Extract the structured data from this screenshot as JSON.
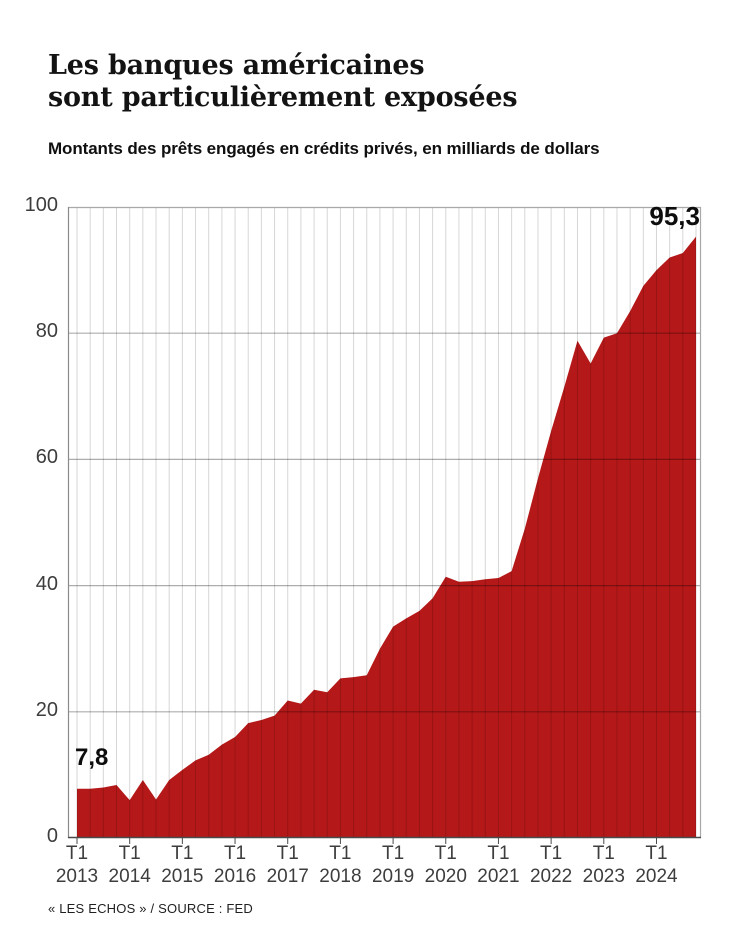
{
  "title": {
    "line1": "Les banques américaines",
    "line2": "sont particulièrement exposées"
  },
  "subtitle": "Montants des prêts engagés en crédits privés, en milliards de dollars",
  "source": "« LES ECHOS » / SOURCE : FED",
  "annotations": {
    "first_value_label": "7,8",
    "last_value_label": "95,3"
  },
  "colors": {
    "area": "#b51818",
    "grid_v": "rgba(0,0,0,0.16)",
    "grid_h": "rgba(0,0,0,0.32)",
    "frame": "#a9a9a9",
    "axis_bottom": "#4a4a4a",
    "axis_text": "#3d3d3d",
    "title_text": "#131313"
  },
  "chart_data": {
    "type": "area",
    "title": "Les banques américaines sont particulièrement exposées",
    "subtitle": "Montants des prêts engagés en crédits privés, en milliards de dollars",
    "unit": "milliards de dollars",
    "frequency": "quarterly",
    "x_range": [
      "T1 2013",
      "T4 2024"
    ],
    "ylim": [
      0,
      100
    ],
    "y_ticks": [
      0,
      20,
      40,
      60,
      80,
      100
    ],
    "grid": true,
    "x_ticks": [
      {
        "quarter": "T1",
        "year": "2013"
      },
      {
        "quarter": "T1",
        "year": "2014"
      },
      {
        "quarter": "T1",
        "year": "2015"
      },
      {
        "quarter": "T1",
        "year": "2016"
      },
      {
        "quarter": "T1",
        "year": "2017"
      },
      {
        "quarter": "T1",
        "year": "2018"
      },
      {
        "quarter": "T1",
        "year": "2019"
      },
      {
        "quarter": "T1",
        "year": "2020"
      },
      {
        "quarter": "T1",
        "year": "2021"
      },
      {
        "quarter": "T1",
        "year": "2022"
      },
      {
        "quarter": "T1",
        "year": "2023"
      },
      {
        "quarter": "T1",
        "year": "2024"
      }
    ],
    "categories": [
      "T1 2013",
      "T2 2013",
      "T3 2013",
      "T4 2013",
      "T1 2014",
      "T2 2014",
      "T3 2014",
      "T4 2014",
      "T1 2015",
      "T2 2015",
      "T3 2015",
      "T4 2015",
      "T1 2016",
      "T2 2016",
      "T3 2016",
      "T4 2016",
      "T1 2017",
      "T2 2017",
      "T3 2017",
      "T4 2017",
      "T1 2018",
      "T2 2018",
      "T3 2018",
      "T4 2018",
      "T1 2019",
      "T2 2019",
      "T3 2019",
      "T4 2019",
      "T1 2020",
      "T2 2020",
      "T3 2020",
      "T4 2020",
      "T1 2021",
      "T2 2021",
      "T3 2021",
      "T4 2021",
      "T1 2022",
      "T2 2022",
      "T3 2022",
      "T4 2022",
      "T1 2023",
      "T2 2023",
      "T3 2023",
      "T4 2023",
      "T1 2024",
      "T2 2024",
      "T3 2024",
      "T4 2024"
    ],
    "series": [
      {
        "name": "Montants des prêts engagés en crédits privés (milliards de dollars)",
        "values": [
          7.8,
          7.8,
          8.0,
          8.4,
          6.0,
          9.2,
          6.1,
          9.2,
          10.8,
          12.3,
          13.2,
          14.8,
          16.0,
          18.2,
          18.7,
          19.4,
          21.8,
          21.3,
          23.5,
          23.1,
          25.3,
          25.5,
          25.8,
          30.0,
          33.5,
          34.8,
          36.0,
          38.0,
          41.4,
          40.6,
          40.7,
          41.0,
          41.2,
          42.3,
          49.0,
          57.0,
          64.5,
          71.5,
          78.8,
          75.2,
          79.3,
          80.0,
          83.5,
          87.5,
          90.0,
          92.0,
          92.7,
          95.3
        ]
      }
    ],
    "annotated_points": [
      {
        "category": "T1 2013",
        "value": 7.8,
        "label": "7,8"
      },
      {
        "category": "T4 2024",
        "value": 95.3,
        "label": "95,3"
      }
    ],
    "legend": "none"
  }
}
